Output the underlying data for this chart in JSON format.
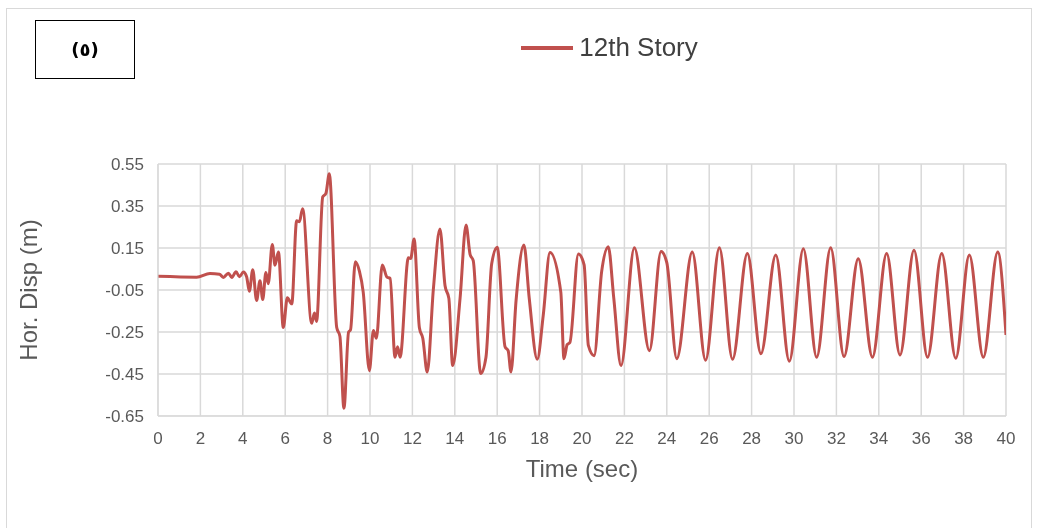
{
  "chart_data": {
    "type": "line",
    "xlabel": "Time (sec)",
    "ylabel": "Hor. Disp (m)",
    "annotations": [
      "(٥)"
    ],
    "xlim": [
      0,
      40
    ],
    "xticks": [
      0,
      2,
      4,
      6,
      8,
      10,
      12,
      14,
      16,
      18,
      20,
      22,
      24,
      26,
      28,
      30,
      32,
      34,
      36,
      38,
      40
    ],
    "ylim": [
      -0.65,
      0.55
    ],
    "yticks": [
      0.55,
      0.35,
      0.15,
      -0.05,
      -0.25,
      -0.45,
      -0.65
    ],
    "grid": true,
    "legend": "top",
    "marker": "none",
    "x": [
      0,
      1.82,
      2.45,
      2.9,
      3.08,
      3.32,
      3.48,
      3.68,
      3.84,
      4.03,
      4.18,
      4.31,
      4.47,
      4.65,
      4.81,
      4.94,
      5.09,
      5.2,
      5.39,
      5.52,
      5.68,
      5.91,
      6.1,
      6.31,
      6.54,
      6.67,
      6.82,
      7.25,
      7.38,
      7.48,
      7.77,
      7.92,
      8.08,
      8.43,
      8.58,
      8.77,
      8.99,
      9.08,
      9.31,
      9.5,
      9.68,
      9.97,
      10.16,
      10.3,
      10.58,
      10.8,
      10.95,
      11.18,
      11.3,
      11.42,
      11.81,
      11.92,
      12.08,
      12.33,
      12.49,
      12.7,
      12.99,
      13.3,
      13.54,
      13.72,
      13.9,
      14.25,
      14.53,
      14.72,
      14.87,
      15.22,
      15.47,
      15.74,
      16.0,
      16.37,
      16.52,
      16.65,
      16.89,
      17.26,
      17.51,
      17.89,
      18.17,
      18.49,
      19.0,
      19.15,
      19.3,
      19.43,
      19.83,
      20.1,
      20.3,
      20.57,
      20.93,
      21.24,
      21.5,
      21.84,
      22.47,
      23.18,
      23.73,
      24.0,
      24.47,
      25.2,
      25.83,
      26.48,
      27.1,
      27.8,
      28.44,
      29.14,
      29.78,
      30.44,
      31.07,
      31.73,
      32.36,
      33.03,
      33.7,
      34.37,
      35.0,
      35.66,
      36.3,
      36.97,
      37.63,
      38.27,
      38.93,
      39.61,
      40
    ],
    "series": [
      {
        "name": "12th Story",
        "color": "#c0504d",
        "values": [
          0.015,
          0.011,
          0.028,
          0.025,
          0.01,
          0.03,
          0.01,
          0.037,
          0.013,
          0.036,
          0.013,
          -0.056,
          0.047,
          -0.1,
          -0.006,
          -0.095,
          0.033,
          -0.02,
          0.167,
          0.068,
          0.131,
          -0.229,
          -0.087,
          -0.116,
          0.28,
          0.275,
          0.337,
          -0.208,
          -0.16,
          -0.2,
          0.393,
          0.41,
          0.503,
          -0.229,
          -0.27,
          -0.613,
          -0.25,
          -0.24,
          0.085,
          0.04,
          -0.06,
          -0.434,
          -0.243,
          -0.28,
          0.069,
          0.011,
          0.005,
          -0.37,
          -0.32,
          -0.37,
          0.103,
          0.1,
          0.193,
          -0.23,
          -0.28,
          -0.441,
          -0.045,
          0.24,
          -0.03,
          -0.09,
          -0.41,
          -0.088,
          0.259,
          0.12,
          0.09,
          -0.448,
          -0.37,
          0.075,
          0.153,
          -0.32,
          -0.34,
          -0.44,
          -0.1,
          0.164,
          -0.088,
          -0.38,
          -0.172,
          0.129,
          -0.06,
          -0.377,
          -0.31,
          -0.3,
          0.122,
          0.07,
          -0.314,
          -0.363,
          0.04,
          0.156,
          -0.09,
          -0.41,
          0.151,
          -0.339,
          0.133,
          0.08,
          -0.377,
          0.131,
          -0.384,
          0.151,
          -0.38,
          0.124,
          -0.353,
          0.117,
          -0.389,
          0.146,
          -0.37,
          0.151,
          -0.367,
          0.099,
          -0.37,
          0.124,
          -0.359,
          0.139,
          -0.37,
          0.124,
          -0.375,
          0.117,
          -0.37,
          0.131,
          -0.264
        ]
      }
    ]
  }
}
